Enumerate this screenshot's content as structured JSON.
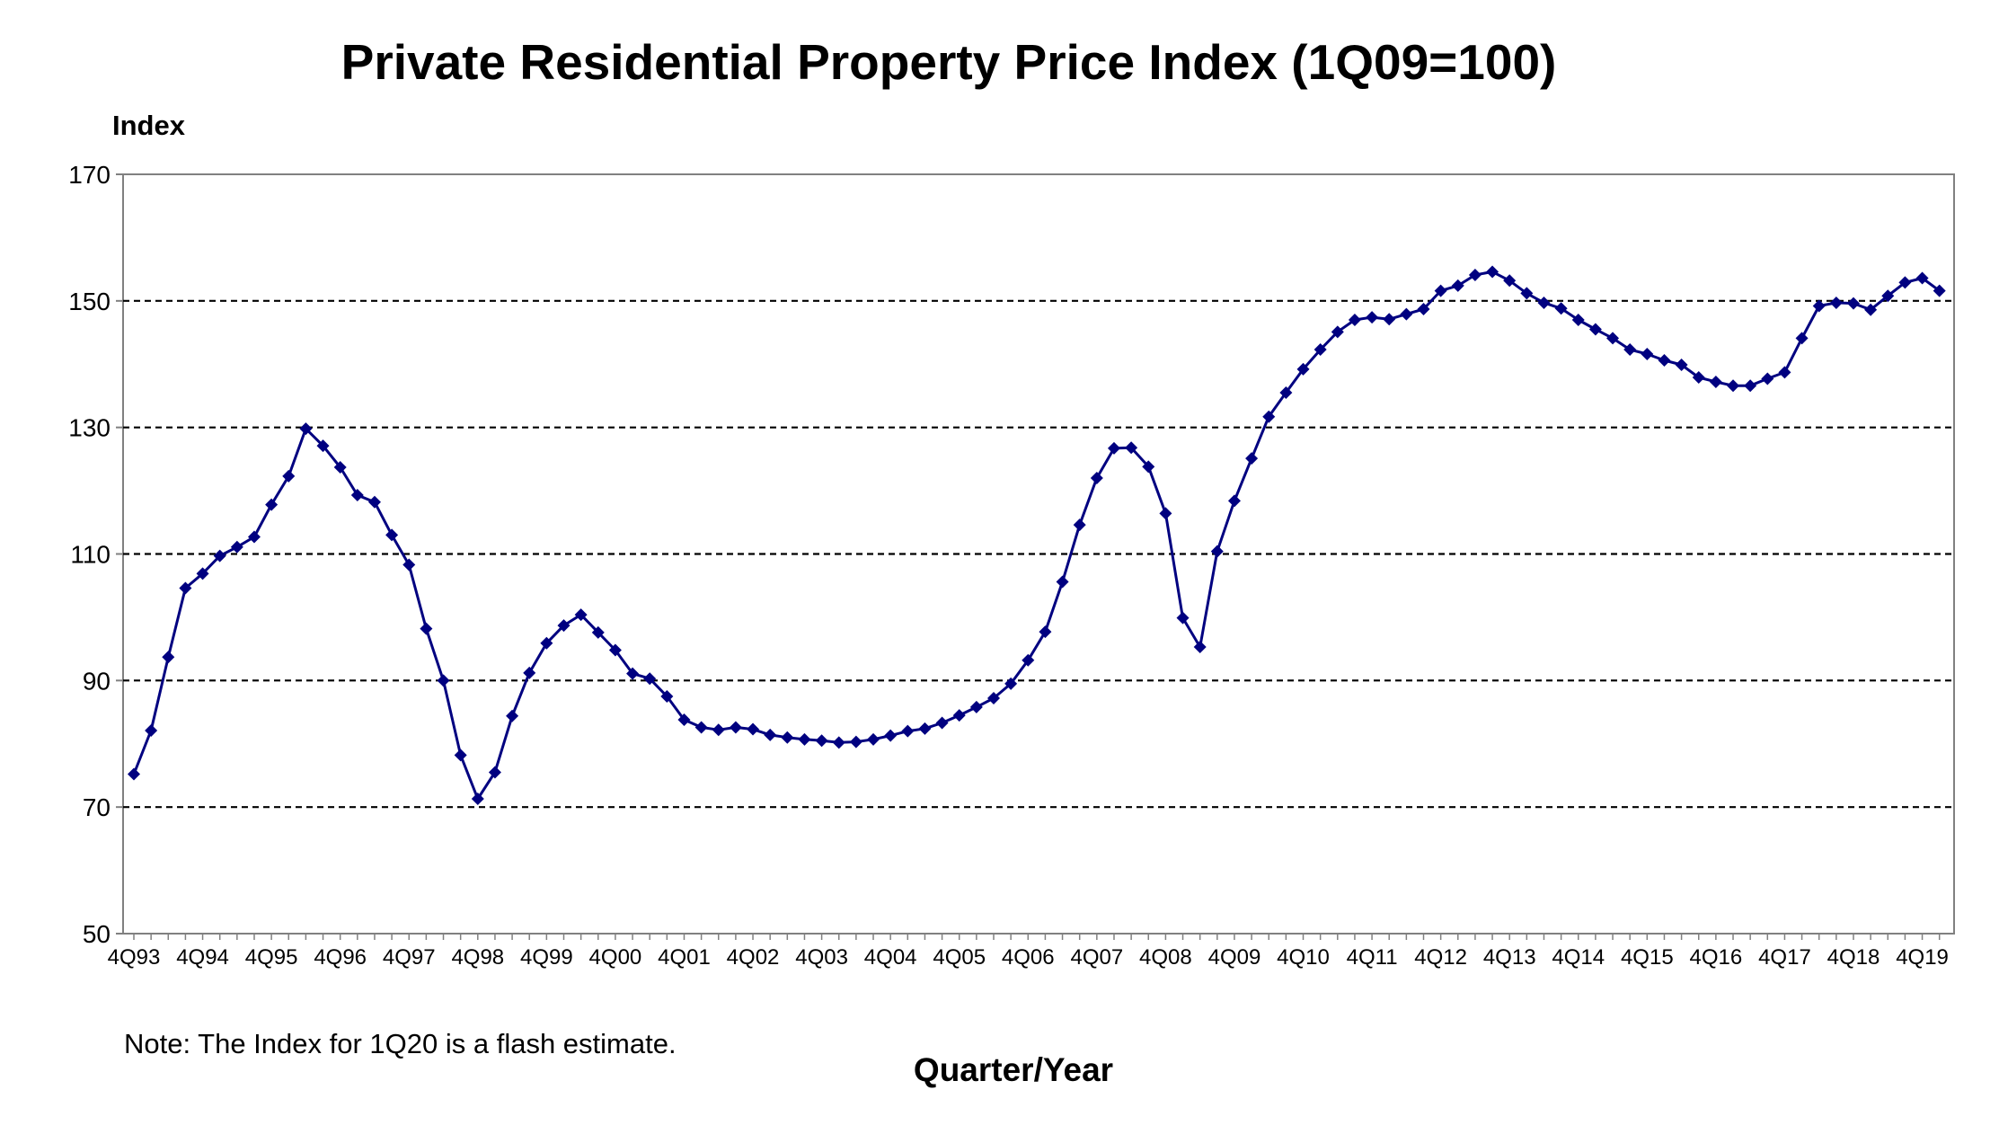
{
  "chart_data": {
    "type": "line",
    "title": "Private Residential Property Price Index (1Q09=100)",
    "ylabel": "Index",
    "xlabel": "Quarter/Year",
    "note": "Note: The Index for 1Q20 is a flash estimate.",
    "ylim": [
      50,
      170
    ],
    "yticks": [
      50,
      70,
      90,
      110,
      130,
      150,
      170
    ],
    "grid": true,
    "grid_style": "dashed horizontal",
    "legend": "none",
    "series_color": "#000080",
    "x_tick_labels": [
      "4Q93",
      "4Q94",
      "4Q95",
      "4Q96",
      "4Q97",
      "4Q98",
      "4Q99",
      "4Q00",
      "4Q01",
      "4Q02",
      "4Q03",
      "4Q04",
      "4Q05",
      "4Q06",
      "4Q07",
      "4Q08",
      "4Q09",
      "4Q10",
      "4Q11",
      "4Q12",
      "4Q13",
      "4Q14",
      "4Q15",
      "4Q16",
      "4Q17",
      "4Q18",
      "4Q19"
    ],
    "series": [
      {
        "values": [
          75.2,
          82.1,
          93.7,
          104.6,
          106.9,
          109.7,
          111.1,
          112.7,
          117.8,
          122.3,
          129.8,
          127.1,
          123.7,
          119.3,
          118.2,
          113.0,
          108.3,
          98.2,
          90.0,
          78.2,
          71.3,
          75.5,
          84.4,
          91.2,
          95.9,
          98.7,
          100.4,
          97.6,
          94.8,
          91.1,
          90.3,
          87.5,
          83.8,
          82.6,
          82.2,
          82.6,
          82.3,
          81.4,
          81.0,
          80.7,
          80.5,
          80.2,
          80.3,
          80.7,
          81.3,
          82.0,
          82.4,
          83.3,
          84.5,
          85.8,
          87.2,
          89.5,
          93.2,
          97.7,
          105.6,
          114.6,
          122.0,
          126.7,
          126.8,
          123.8,
          116.4,
          99.9,
          95.3,
          110.4,
          118.4,
          125.1,
          131.7,
          135.5,
          139.2,
          142.3,
          145.1,
          147.0,
          147.4,
          147.1,
          147.9,
          148.7,
          151.6,
          152.4,
          154.1,
          154.6,
          153.2,
          151.2,
          149.7,
          148.8,
          147.0,
          145.5,
          144.1,
          142.3,
          141.6,
          140.6,
          139.9,
          137.9,
          137.2,
          136.6,
          136.6,
          137.7,
          138.7,
          144.1,
          149.2,
          149.7,
          149.6,
          148.6,
          150.8,
          152.9,
          153.6,
          151.6
        ]
      }
    ]
  }
}
